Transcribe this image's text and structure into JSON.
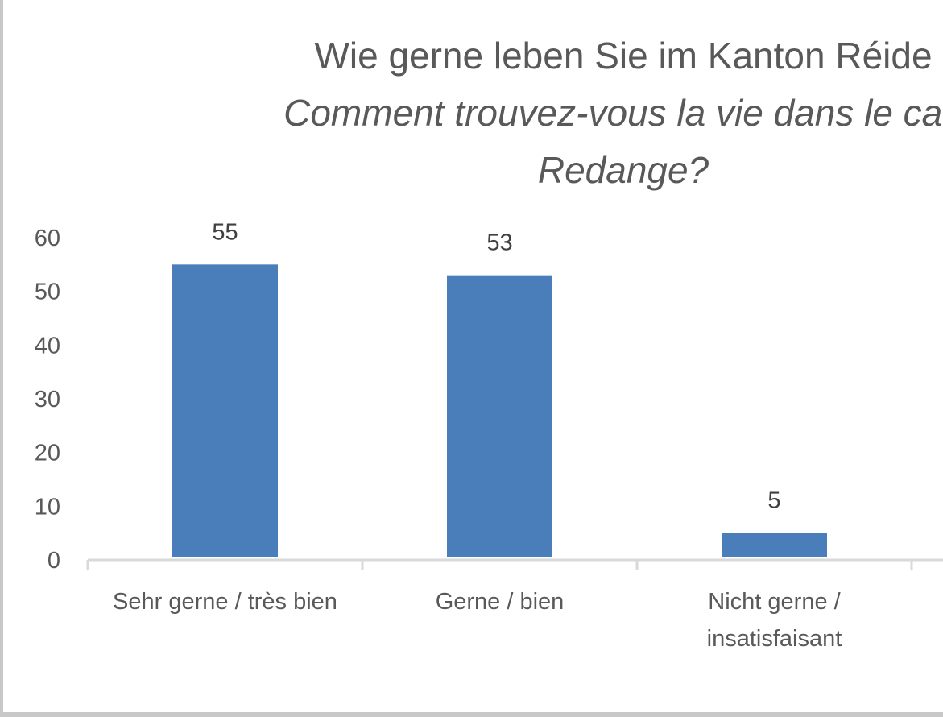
{
  "chart_data": {
    "type": "bar",
    "title": "Wie gerne leben Sie im Kanton Réide",
    "subtitle": "Comment trouvez-vous la vie dans le can",
    "subtitle_cont": "Redange?",
    "categories": [
      [
        "Sehr gerne / très bien"
      ],
      [
        "Gerne / bien"
      ],
      [
        "Nicht gerne /",
        "insatisfaisant"
      ]
    ],
    "values": [
      55,
      53,
      5
    ],
    "data_labels": [
      "55",
      "53",
      "5"
    ],
    "ylim": [
      0,
      60
    ],
    "yticks": [
      "0",
      "10",
      "20",
      "30",
      "40",
      "50",
      "60"
    ],
    "grid": false,
    "bar_color": "#4a7ebb",
    "axis_color": "#d9d9d9"
  }
}
